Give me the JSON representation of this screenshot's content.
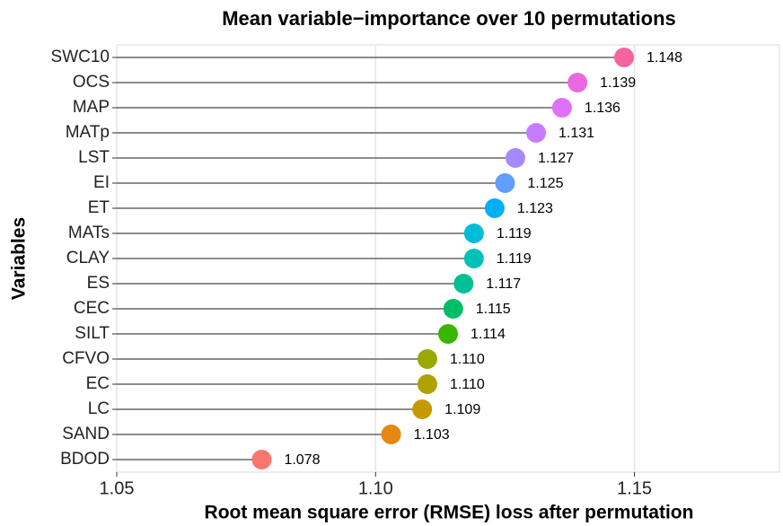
{
  "chart_data": {
    "type": "lollipop",
    "title": "Mean variable−importance over 10 permutations",
    "x_label": "Root mean square error (RMSE) loss after permutation",
    "y_label": "Variables",
    "categories": [
      "SWC10",
      "OCS",
      "MAP",
      "MATp",
      "LST",
      "EI",
      "ET",
      "MATs",
      "CLAY",
      "ES",
      "CEC",
      "SILT",
      "CFVO",
      "EC",
      "LC",
      "SAND",
      "BDOD"
    ],
    "values": [
      1.148,
      1.139,
      1.136,
      1.131,
      1.127,
      1.125,
      1.123,
      1.119,
      1.119,
      1.117,
      1.115,
      1.114,
      1.11,
      1.11,
      1.109,
      1.103,
      1.078
    ],
    "value_labels": [
      "1.148",
      "1.139",
      "1.136",
      "1.131",
      "1.127",
      "1.125",
      "1.123",
      "1.119",
      "1.119",
      "1.117",
      "1.115",
      "1.114",
      "1.110",
      "1.110",
      "1.109",
      "1.103",
      "1.078"
    ],
    "colors": [
      "#f564a0",
      "#e96ae0",
      "#df70f8",
      "#c77cff",
      "#a58aff",
      "#619cff",
      "#00b0f6",
      "#00bcd8",
      "#00c0b8",
      "#00bf96",
      "#00be67",
      "#39b600",
      "#9aa800",
      "#aea200",
      "#c49a00",
      "#e68613",
      "#f8766d"
    ],
    "line_color": "#666666",
    "xlim": [
      1.05,
      1.178
    ],
    "xticks": [
      1.05,
      {
        "value": 1.1,
        "label": "1.10"
      },
      1.15
    ],
    "grid": true
  }
}
